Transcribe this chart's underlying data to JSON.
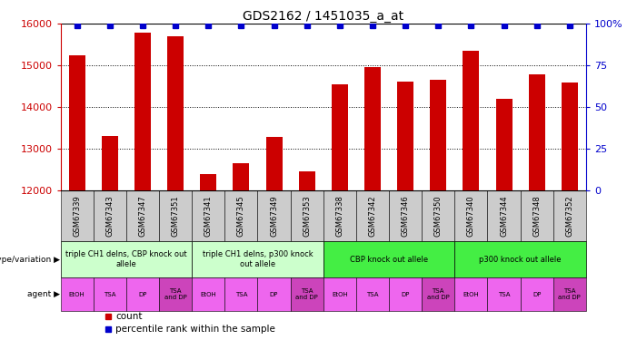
{
  "title": "GDS2162 / 1451035_a_at",
  "samples": [
    "GSM67339",
    "GSM67343",
    "GSM67347",
    "GSM67351",
    "GSM67341",
    "GSM67345",
    "GSM67349",
    "GSM67353",
    "GSM67338",
    "GSM67342",
    "GSM67346",
    "GSM67350",
    "GSM67340",
    "GSM67344",
    "GSM67348",
    "GSM67352"
  ],
  "counts": [
    15250,
    13300,
    15780,
    15700,
    12400,
    12650,
    13280,
    12450,
    14550,
    14950,
    14620,
    14650,
    15350,
    14200,
    14780,
    14600
  ],
  "percentiles": [
    99,
    99,
    99,
    99,
    99,
    99,
    99,
    99,
    99,
    99,
    99,
    99,
    99,
    99,
    99,
    99
  ],
  "ylim_left": [
    12000,
    16000
  ],
  "ylim_right": [
    0,
    100
  ],
  "yticks_left": [
    12000,
    13000,
    14000,
    15000,
    16000
  ],
  "yticks_right": [
    0,
    25,
    50,
    75,
    100
  ],
  "bar_color": "#cc0000",
  "percentile_color": "#0000cc",
  "genotype_groups": [
    {
      "label": "triple CH1 delns, CBP knock out\nallele",
      "start": 0,
      "end": 4,
      "color": "#ccffcc"
    },
    {
      "label": "triple CH1 delns, p300 knock\nout allele",
      "start": 4,
      "end": 8,
      "color": "#ccffcc"
    },
    {
      "label": "CBP knock out allele",
      "start": 8,
      "end": 12,
      "color": "#44ee44"
    },
    {
      "label": "p300 knock out allele",
      "start": 12,
      "end": 16,
      "color": "#44ee44"
    }
  ],
  "agent_labels": [
    "EtOH",
    "TSA",
    "DP",
    "TSA\nand DP",
    "EtOH",
    "TSA",
    "DP",
    "TSA\nand DP",
    "EtOH",
    "TSA",
    "DP",
    "TSA\nand DP",
    "EtOH",
    "TSA",
    "DP",
    "TSA\nand DP"
  ],
  "agent_normal_color": "#ee66ee",
  "agent_tsa_dp_color": "#cc44bb",
  "label_arrow": "▶",
  "legend_count_color": "#cc0000",
  "legend_percentile_color": "#0000cc",
  "bg_color": "#ffffff",
  "grid_color": "#000000",
  "tick_label_color_left": "#cc0000",
  "tick_label_color_right": "#0000cc",
  "xticklabel_bg": "#cccccc",
  "xticklabel_fontsize": 6,
  "bar_width": 0.5
}
